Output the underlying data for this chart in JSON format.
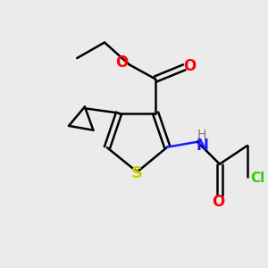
{
  "bg_color": "#ebebeb",
  "atom_colors": {
    "C": "#000000",
    "O": "#ff0000",
    "N": "#1a1aff",
    "S": "#cccc00",
    "Cl": "#33cc00",
    "H": "#777777"
  },
  "bond_color": "#000000",
  "bond_width": 1.8
}
